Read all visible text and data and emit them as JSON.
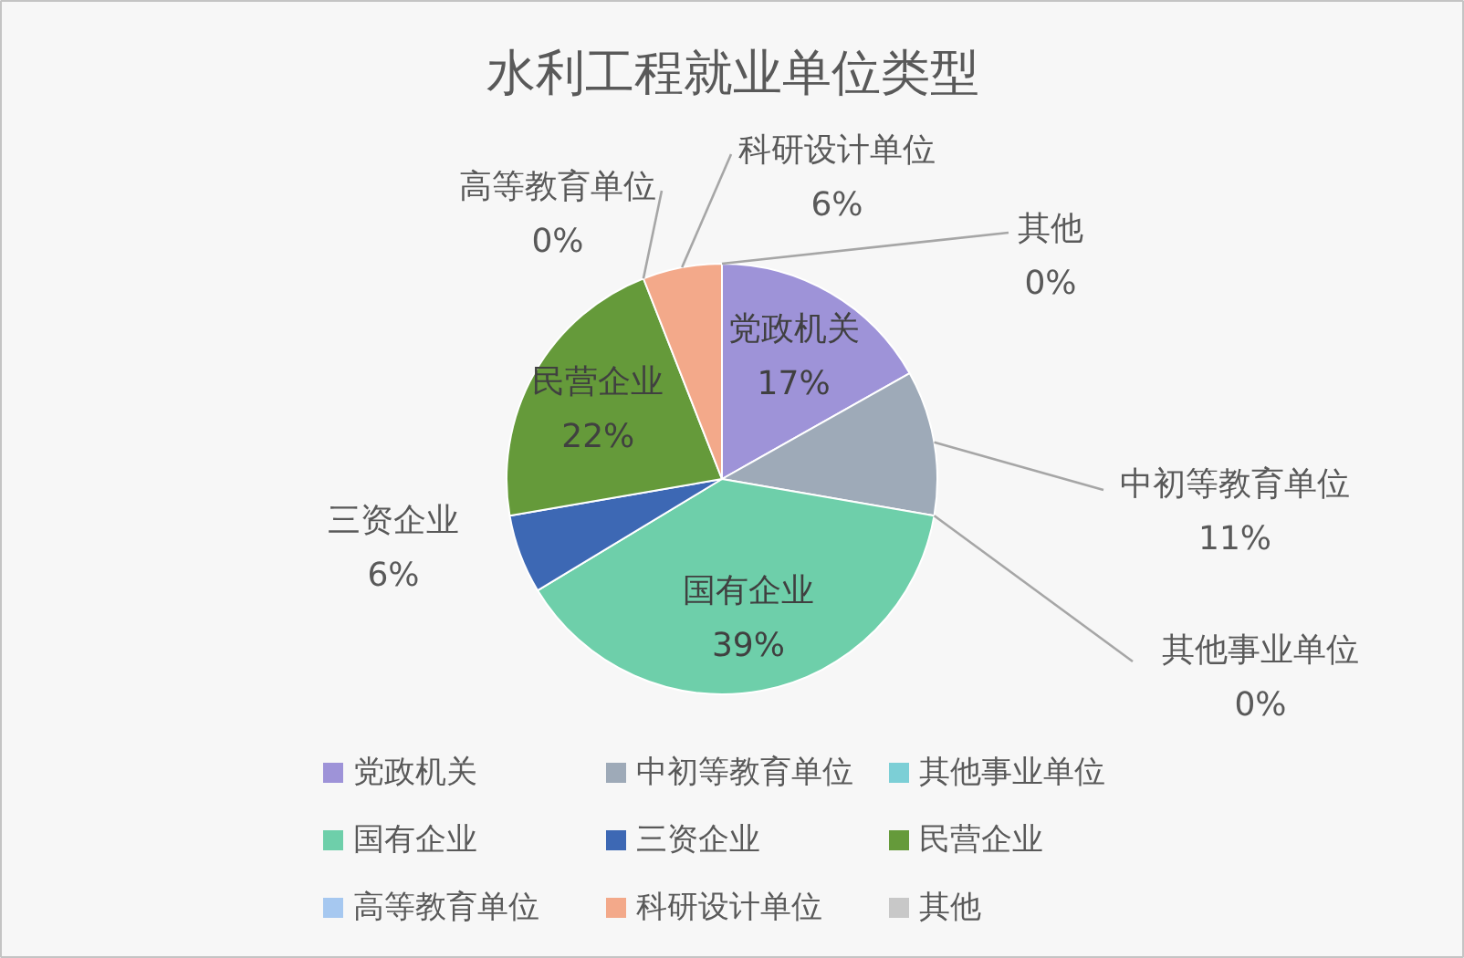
{
  "chart_data": {
    "type": "pie",
    "title": "水利工程就业单位类型",
    "categories": [
      "党政机关",
      "中初等教育单位",
      "其他事业单位",
      "国有企业",
      "三资企业",
      "民营企业",
      "高等教育单位",
      "科研设计单位",
      "其他"
    ],
    "values": [
      17,
      11,
      0,
      39,
      6,
      22,
      0,
      6,
      0
    ],
    "colors": [
      "#9e93d8",
      "#9eaab8",
      "#7ccfd6",
      "#6ecfaa",
      "#3d68b4",
      "#659a3a",
      "#a6c8f0",
      "#f3a98a",
      "#c8c8c8"
    ],
    "value_labels": [
      "17%",
      "11%",
      "0%",
      "39%",
      "6%",
      "22%",
      "0%",
      "6%",
      "0%"
    ],
    "legend": "bottom"
  }
}
